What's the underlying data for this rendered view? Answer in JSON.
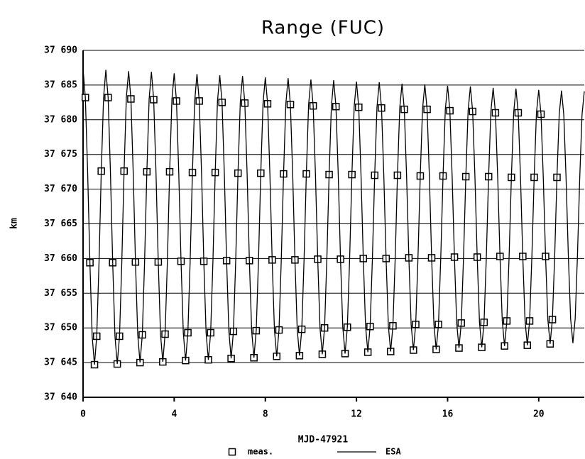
{
  "chart_data": {
    "type": "line",
    "title": "Range (FUC)",
    "xlabel": "MJD-47921",
    "ylabel": "km",
    "xlim": [
      0,
      22
    ],
    "ylim": [
      37640,
      37690
    ],
    "xticks": [
      0,
      4,
      8,
      12,
      16,
      20
    ],
    "yticks": [
      {
        "value": 37640,
        "label": "37 640"
      },
      {
        "value": 37645,
        "label": "37 645"
      },
      {
        "value": 37650,
        "label": "37 650"
      },
      {
        "value": 37655,
        "label": "37 655"
      },
      {
        "value": 37660,
        "label": "37 660"
      },
      {
        "value": 37665,
        "label": "37 665"
      },
      {
        "value": 37670,
        "label": "37 670"
      },
      {
        "value": 37675,
        "label": "37 675"
      },
      {
        "value": 37680,
        "label": "37 680"
      },
      {
        "value": 37685,
        "label": "37 685"
      },
      {
        "value": 37690,
        "label": "37 690"
      }
    ],
    "grid": true,
    "legend": "bottom",
    "series": [
      {
        "name": "meas.",
        "type": "scatter",
        "marker": "square",
        "color": "#000000",
        "x": [
          0.1,
          0.3,
          0.5,
          0.6,
          0.8,
          1.1,
          1.3,
          1.5,
          1.6,
          1.8,
          2.1,
          2.3,
          2.5,
          2.6,
          2.8,
          3.1,
          3.3,
          3.5,
          3.6,
          3.8,
          4.1,
          4.3,
          4.5,
          4.6,
          4.8,
          5.1,
          5.3,
          5.5,
          5.6,
          5.8,
          6.1,
          6.3,
          6.5,
          6.6,
          6.8,
          7.1,
          7.3,
          7.5,
          7.6,
          7.8,
          8.1,
          8.3,
          8.5,
          8.6,
          8.8,
          9.1,
          9.3,
          9.5,
          9.6,
          9.8,
          10.1,
          10.3,
          10.5,
          10.6,
          10.8,
          11.1,
          11.3,
          11.5,
          11.6,
          11.8,
          12.1,
          12.3,
          12.5,
          12.6,
          12.8,
          13.1,
          13.3,
          13.5,
          13.6,
          13.8,
          14.1,
          14.3,
          14.5,
          14.6,
          14.8,
          15.1,
          15.3,
          15.5,
          15.6,
          15.8,
          16.1,
          16.3,
          16.5,
          16.6,
          16.8,
          17.1,
          17.3,
          17.5,
          17.6,
          17.8,
          18.1,
          18.3,
          18.5,
          18.6,
          18.8,
          19.1,
          19.3,
          19.5,
          19.6,
          19.8,
          20.1,
          20.3,
          20.5,
          20.6,
          20.8
        ],
        "values": [
          37683.2,
          37659.4,
          37644.7,
          37648.8,
          37672.6,
          37683.2,
          37659.4,
          37644.8,
          37648.8,
          37672.6,
          37683.0,
          37659.5,
          37645.0,
          37649.0,
          37672.5,
          37682.9,
          37659.5,
          37645.1,
          37649.1,
          37672.5,
          37682.7,
          37659.6,
          37645.3,
          37649.3,
          37672.4,
          37682.7,
          37659.6,
          37645.4,
          37649.3,
          37672.4,
          37682.5,
          37659.7,
          37645.6,
          37649.5,
          37672.3,
          37682.4,
          37659.7,
          37645.7,
          37649.6,
          37672.3,
          37682.3,
          37659.8,
          37645.9,
          37649.7,
          37672.2,
          37682.2,
          37659.8,
          37646.0,
          37649.8,
          37672.2,
          37682.0,
          37659.9,
          37646.2,
          37650.0,
          37672.1,
          37681.9,
          37659.9,
          37646.3,
          37650.1,
          37672.1,
          37681.8,
          37660.0,
          37646.5,
          37650.2,
          37672.0,
          37681.7,
          37660.0,
          37646.6,
          37650.3,
          37672.0,
          37681.5,
          37660.1,
          37646.8,
          37650.5,
          37671.9,
          37681.5,
          37660.1,
          37646.9,
          37650.5,
          37671.9,
          37681.3,
          37660.2,
          37647.1,
          37650.7,
          37671.8,
          37681.2,
          37660.2,
          37647.2,
          37650.8,
          37671.8,
          37681.0,
          37660.3,
          37647.4,
          37651.0,
          37671.7,
          37681.0,
          37660.3,
          37647.5,
          37651.0,
          37671.7,
          37680.8,
          37660.3,
          37647.7,
          37651.2,
          37671.7
        ]
      },
      {
        "name": "ESA",
        "type": "line",
        "color": "#000000",
        "x": [
          0,
          0.1,
          0.2,
          0.3,
          0.4,
          0.5,
          0.6,
          0.7,
          0.8,
          0.9,
          1,
          1.1,
          1.2,
          1.3,
          1.4,
          1.5,
          1.6,
          1.7,
          1.8,
          1.9,
          2,
          2.1,
          2.2,
          2.3,
          2.4,
          2.5,
          2.6,
          2.7,
          2.8,
          2.9,
          3,
          3.1,
          3.2,
          3.3,
          3.4,
          3.5,
          3.6,
          3.7,
          3.8,
          3.9,
          4,
          4.1,
          4.2,
          4.3,
          4.4,
          4.5,
          4.6,
          4.7,
          4.8,
          4.9,
          5,
          5.1,
          5.2,
          5.3,
          5.4,
          5.5,
          5.6,
          5.7,
          5.8,
          5.9,
          6,
          6.1,
          6.2,
          6.3,
          6.4,
          6.5,
          6.6,
          6.7,
          6.8,
          6.9,
          7,
          7.1,
          7.2,
          7.3,
          7.4,
          7.5,
          7.6,
          7.7,
          7.8,
          7.9,
          8,
          8.1,
          8.2,
          8.3,
          8.4,
          8.5,
          8.6,
          8.7,
          8.8,
          8.9,
          9,
          9.1,
          9.2,
          9.3,
          9.4,
          9.5,
          9.6,
          9.7,
          9.8,
          9.9,
          10,
          10.1,
          10.2,
          10.3,
          10.4,
          10.5,
          10.6,
          10.7,
          10.8,
          10.9,
          11,
          11.1,
          11.2,
          11.3,
          11.4,
          11.5,
          11.6,
          11.7,
          11.8,
          11.9,
          12,
          12.1,
          12.2,
          12.3,
          12.4,
          12.5,
          12.6,
          12.7,
          12.8,
          12.9,
          13,
          13.1,
          13.2,
          13.3,
          13.4,
          13.5,
          13.6,
          13.7,
          13.8,
          13.9,
          14,
          14.1,
          14.2,
          14.3,
          14.4,
          14.5,
          14.6,
          14.7,
          14.8,
          14.9,
          15,
          15.1,
          15.2,
          15.3,
          15.4,
          15.5,
          15.6,
          15.7,
          15.8,
          15.9,
          16,
          16.1,
          16.2,
          16.3,
          16.4,
          16.5,
          16.6,
          16.7,
          16.8,
          16.9,
          17,
          17.1,
          17.2,
          17.3,
          17.4,
          17.5,
          17.6,
          17.7,
          17.8,
          17.9,
          18,
          18.1,
          18.2,
          18.3,
          18.4,
          18.5,
          18.6,
          18.7,
          18.8,
          18.9,
          19,
          19.1,
          19.2,
          19.3,
          19.4,
          19.5,
          19.6,
          19.7,
          19.8,
          19.9,
          20,
          20.1,
          20.2,
          20.3,
          20.4,
          20.5,
          20.6,
          20.7,
          20.8,
          20.9,
          21,
          21.1,
          21.2,
          21.3,
          21.4,
          21.5,
          21.6,
          21.7,
          21.8,
          21.9,
          22
        ],
        "values": [
          37687.3,
          37683.2,
          37672.6,
          37659.4,
          37648.8,
          37644.7,
          37648.8,
          37659.4,
          37672.6,
          37683.2,
          37687.2,
          37683.2,
          37672.6,
          37659.4,
          37648.8,
          37644.8,
          37648.8,
          37659.4,
          37672.6,
          37683.2,
          37687.0,
          37683.0,
          37672.5,
          37659.5,
          37649.0,
          37645.0,
          37649.0,
          37659.5,
          37672.5,
          37683.0,
          37686.9,
          37682.9,
          37672.5,
          37659.5,
          37649.1,
          37645.1,
          37649.1,
          37659.5,
          37672.5,
          37682.9,
          37686.7,
          37682.7,
          37672.4,
          37659.6,
          37649.3,
          37645.3,
          37649.3,
          37659.6,
          37672.4,
          37682.7,
          37686.6,
          37682.7,
          37672.4,
          37659.6,
          37649.3,
          37645.4,
          37649.3,
          37659.6,
          37672.4,
          37682.7,
          37686.4,
          37682.5,
          37672.3,
          37659.7,
          37649.5,
          37645.6,
          37649.5,
          37659.7,
          37672.3,
          37682.5,
          37686.3,
          37682.4,
          37672.3,
          37659.7,
          37649.6,
          37645.7,
          37649.6,
          37659.7,
          37672.3,
          37682.4,
          37686.1,
          37682.3,
          37672.2,
          37659.8,
          37649.7,
          37645.9,
          37649.7,
          37659.8,
          37672.2,
          37682.3,
          37686.0,
          37682.2,
          37672.2,
          37659.8,
          37649.8,
          37646.0,
          37649.8,
          37659.8,
          37672.2,
          37682.2,
          37685.8,
          37682.0,
          37672.1,
          37659.9,
          37650.0,
          37646.2,
          37650.0,
          37659.9,
          37672.1,
          37682.0,
          37685.7,
          37681.9,
          37672.1,
          37659.9,
          37650.1,
          37646.3,
          37650.1,
          37659.9,
          37672.1,
          37681.9,
          37685.5,
          37681.8,
          37672.0,
          37660.0,
          37650.2,
          37646.5,
          37650.2,
          37660.0,
          37672.0,
          37681.8,
          37685.4,
          37681.7,
          37672.0,
          37660.0,
          37650.3,
          37646.6,
          37650.3,
          37660.0,
          37672.0,
          37681.7,
          37685.2,
          37681.5,
          37671.9,
          37660.1,
          37650.5,
          37646.8,
          37650.5,
          37660.1,
          37671.9,
          37681.5,
          37685.1,
          37681.5,
          37671.9,
          37660.1,
          37650.5,
          37646.9,
          37650.5,
          37660.1,
          37671.9,
          37681.5,
          37684.9,
          37681.3,
          37671.8,
          37660.2,
          37650.7,
          37647.1,
          37650.7,
          37660.2,
          37671.8,
          37681.3,
          37684.8,
          37681.2,
          37671.8,
          37660.2,
          37650.8,
          37647.2,
          37650.8,
          37660.2,
          37671.8,
          37681.2,
          37684.6,
          37681.0,
          37671.7,
          37660.3,
          37651.0,
          37647.4,
          37651.0,
          37660.3,
          37671.7,
          37681.0,
          37684.5,
          37681.0,
          37671.7,
          37660.3,
          37651.0,
          37647.5,
          37651.0,
          37660.3,
          37671.7,
          37681.0,
          37684.3,
          37680.8,
          37671.7,
          37660.3,
          37651.2,
          37647.7,
          37651.2,
          37660.3,
          37671.7,
          37680.8,
          37684.2,
          37680.7,
          37671.6,
          37660.4,
          37651.3,
          37647.8,
          37651.3,
          37660.4,
          37671.6,
          37680.7,
          37684.1
        ]
      }
    ]
  }
}
